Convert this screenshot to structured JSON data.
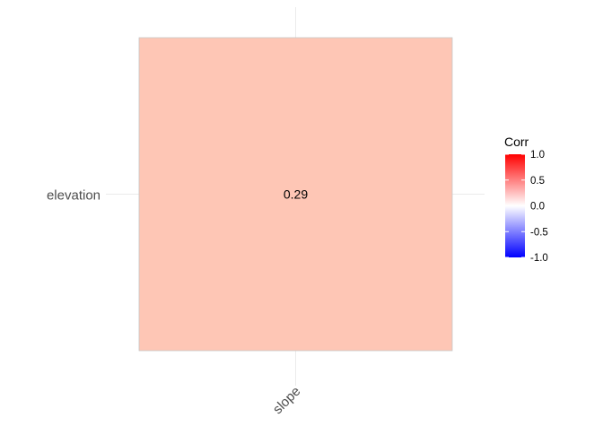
{
  "chart_data": {
    "type": "heatmap",
    "title": "",
    "xlabel": "",
    "ylabel": "",
    "x_categories": [
      "slope"
    ],
    "y_categories": [
      "elevation"
    ],
    "cells": [
      {
        "x": "slope",
        "y": "elevation",
        "value": 0.29,
        "label": "0.29"
      }
    ],
    "color_scale": {
      "low": "#0000ff",
      "mid": "#ffffff",
      "high": "#ff0000",
      "limits": [
        -1.0,
        1.0
      ]
    },
    "cell_color": "#fec6b5",
    "cell_border_color": "#c8c8c8",
    "grid": true,
    "grid_color": "#ebebeb",
    "legend": {
      "title": "Corr",
      "position": "right",
      "breaks": [
        1.0,
        0.5,
        0.0,
        -0.5,
        -1.0
      ],
      "break_labels": [
        "1.0",
        "0.5",
        "0.0",
        "-0.5",
        "-1.0"
      ]
    },
    "axis_text_color": "#4d4d4d"
  }
}
